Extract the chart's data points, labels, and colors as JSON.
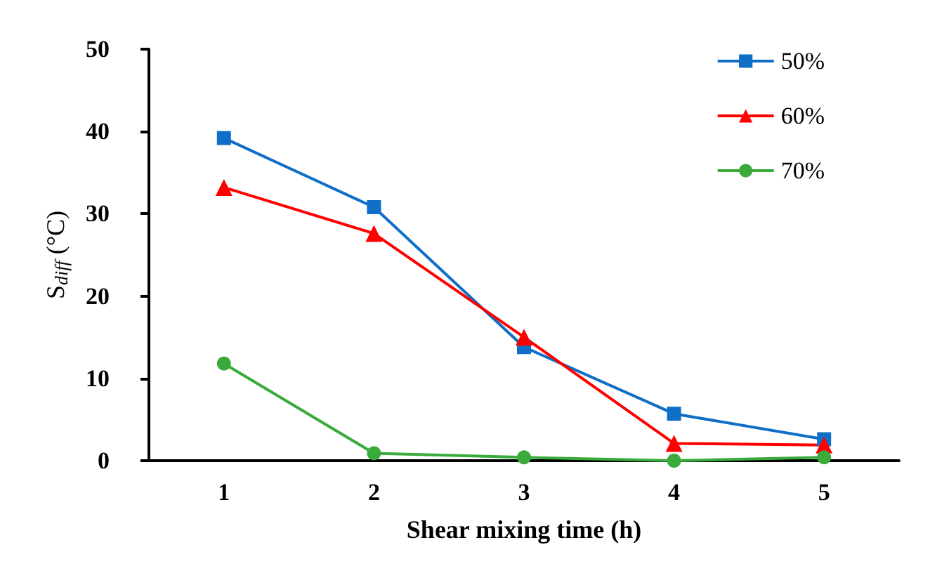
{
  "chart_data": {
    "type": "line",
    "xlabel": "Shear mixing time (h)",
    "ylabel": "S$_{diff}$ (°C)",
    "categories": [
      "1",
      "2",
      "3",
      "4",
      "5"
    ],
    "series": [
      {
        "name": "50%",
        "color": "#0f6fc6",
        "marker": "square",
        "values": [
          39.2,
          30.8,
          13.8,
          5.7,
          2.6
        ]
      },
      {
        "name": "60%",
        "color": "#ff0000",
        "marker": "triangle",
        "values": [
          33.2,
          27.6,
          15.0,
          2.1,
          1.9
        ]
      },
      {
        "name": "70%",
        "color": "#3aab3a",
        "marker": "circle",
        "values": [
          11.8,
          0.9,
          0.4,
          0.0,
          0.4
        ]
      }
    ],
    "ylim": [
      0,
      50
    ],
    "yticks": [
      0,
      10,
      20,
      30,
      40,
      50
    ],
    "grid": false,
    "legend": "top right",
    "line_style": "solid"
  }
}
